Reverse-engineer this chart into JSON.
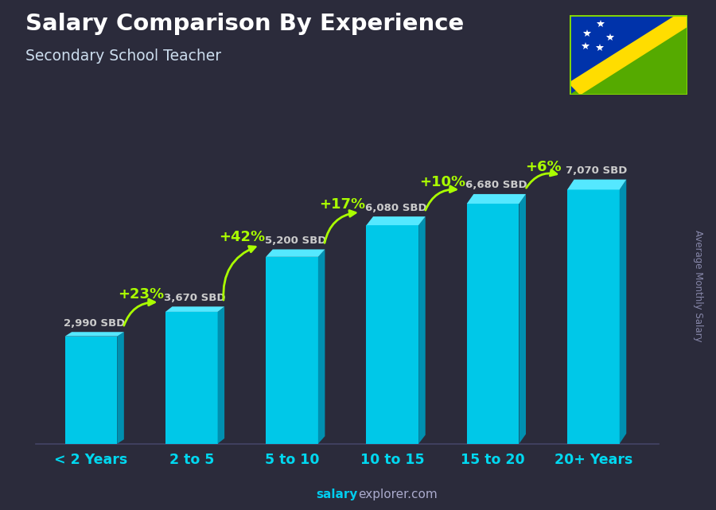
{
  "title": "Salary Comparison By Experience",
  "subtitle": "Secondary School Teacher",
  "categories": [
    "< 2 Years",
    "2 to 5",
    "5 to 10",
    "10 to 15",
    "15 to 20",
    "20+ Years"
  ],
  "values": [
    2990,
    3670,
    5200,
    6080,
    6680,
    7070
  ],
  "labels": [
    "2,990 SBD",
    "3,670 SBD",
    "5,200 SBD",
    "6,080 SBD",
    "6,680 SBD",
    "7,070 SBD"
  ],
  "pct_labels": [
    "+23%",
    "+42%",
    "+17%",
    "+10%",
    "+6%"
  ],
  "color_front": "#00c8e8",
  "color_top": "#55e8ff",
  "color_side": "#0090b0",
  "bg_color": "#2b2b3b",
  "text_color": "#ffffff",
  "cat_color": "#00d8f0",
  "green_color": "#aaff00",
  "label_color": "#cccccc",
  "footer_salary_color": "#00ccee",
  "footer_explorer_color": "#aaaacc",
  "ylabel": "Average Monthly Salary",
  "ylim": [
    0,
    8800
  ],
  "bar_width": 0.52,
  "flag_blue": "#0033aa",
  "flag_green": "#55aa00",
  "flag_yellow": "#ffdd00"
}
